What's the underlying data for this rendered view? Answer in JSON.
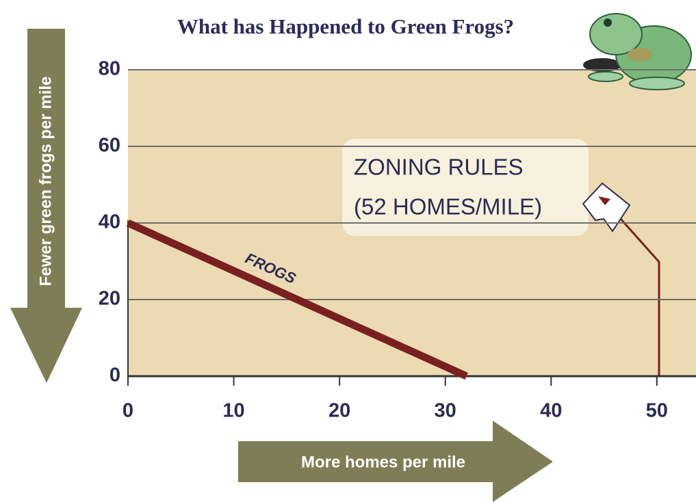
{
  "chart_data": {
    "type": "line",
    "title": "What has Happened to Green Frogs?",
    "x_label": "More homes per mile",
    "y_label": "Fewer green frogs per mile",
    "series": [
      {
        "name": "FROGS",
        "color": "#7a1f1f",
        "x": [
          0,
          32
        ],
        "values": [
          40,
          0
        ]
      }
    ],
    "callout": [
      "ZONING RULES",
      "(52 HOMES/MILE)"
    ],
    "xlim": [
      0,
      53.7
    ],
    "ylim": [
      0,
      80
    ],
    "xticks": [
      0,
      10,
      20,
      30,
      40,
      50
    ],
    "yticks": [
      0,
      20,
      40,
      60,
      80
    ],
    "grid": true
  }
}
